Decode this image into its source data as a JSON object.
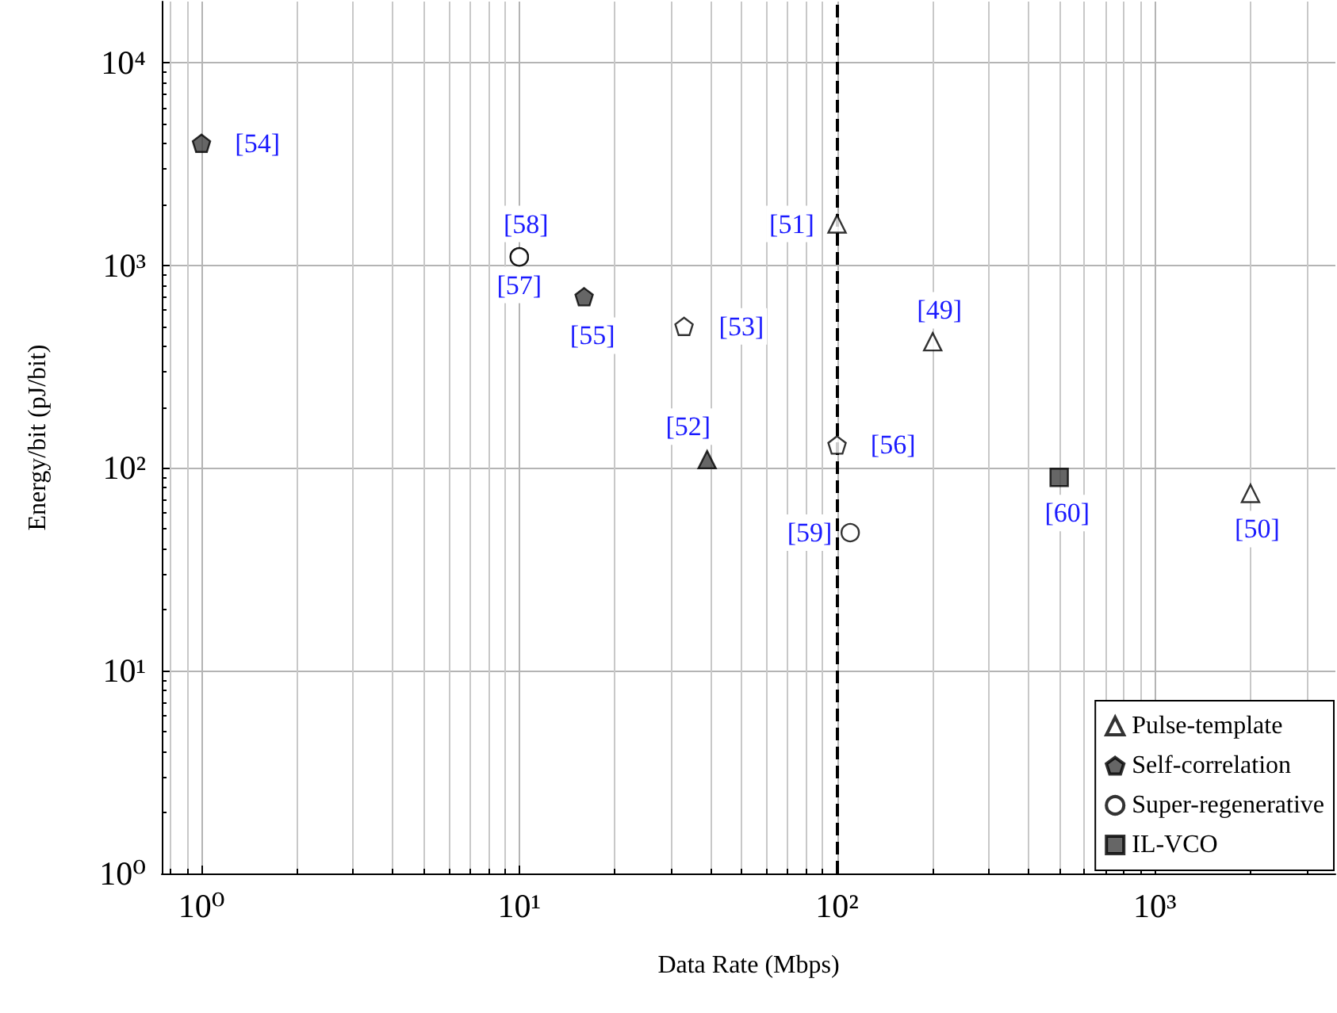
{
  "chart_data": {
    "type": "scatter",
    "xlabel": "Data Rate (Mbps)",
    "ylabel": "Energy/bit (pJ/bit)",
    "log": "xy",
    "grid": true,
    "legend": "bottom right",
    "xlim": [
      0.75,
      3700
    ],
    "ylim": [
      1,
      20000
    ],
    "xticks": [
      {
        "value": 1,
        "label": "10⁰"
      },
      {
        "value": 10,
        "label": "10¹"
      },
      {
        "value": 100,
        "label": "10²"
      },
      {
        "value": 1000,
        "label": "10³"
      }
    ],
    "yticks": [
      {
        "value": 1,
        "label": "10⁰"
      },
      {
        "value": 10,
        "label": "10¹"
      },
      {
        "value": 100,
        "label": "10²"
      },
      {
        "value": 1000,
        "label": "10³"
      },
      {
        "value": 10000,
        "label": "10⁴"
      }
    ],
    "series": [
      {
        "name": "Pulse-template",
        "marker": "triangle",
        "color": "#ffffff",
        "x": [
          100,
          200,
          39,
          2000
        ],
        "values": [
          1600,
          420,
          110,
          75
        ],
        "colors": [
          "#ffffff",
          "#ffffff",
          "#404040",
          "#ffffff"
        ]
      },
      {
        "name": "Self-correlation",
        "color": "#404040",
        "x": [
          1,
          16,
          33,
          100
        ],
        "values": [
          4000,
          700,
          500,
          130
        ],
        "colors": [
          "#404040",
          "#404040",
          "#ffffff",
          "#ffffff"
        ]
      },
      {
        "name": "Super-regenerative",
        "marker": "circle",
        "color": "#ffffff",
        "x": [
          10,
          10,
          110
        ],
        "values": [
          1100,
          1100,
          48
        ],
        "colors": [
          "#ffffff",
          "#ffffff",
          "#ffffff"
        ]
      },
      {
        "name": "IL-VCO",
        "marker": "square",
        "color": "#404040",
        "x": [
          500
        ],
        "values": [
          90
        ],
        "colors": [
          "#404040"
        ]
      }
    ],
    "ref_lines": [
      {
        "axis": "x",
        "value": 100,
        "color": "#000000",
        "line_style": "dashed"
      }
    ],
    "annotations": [
      {
        "text": "[54]",
        "x": 1.5,
        "y": 4000
      },
      {
        "text": "[58]",
        "x": 10.5,
        "y": 1600
      },
      {
        "text": "[57]",
        "x": 10,
        "y": 800
      },
      {
        "text": "[55]",
        "x": 17,
        "y": 450
      },
      {
        "text": "[53]",
        "x": 50,
        "y": 500
      },
      {
        "text": "[52]",
        "x": 34,
        "y": 160
      },
      {
        "text": "[51]",
        "x": 72,
        "y": 1600
      },
      {
        "text": "[49]",
        "x": 210,
        "y": 600
      },
      {
        "text": "[56]",
        "x": 150,
        "y": 130
      },
      {
        "text": "[59]",
        "x": 82,
        "y": 48
      },
      {
        "text": "[60]",
        "x": 530,
        "y": 60
      },
      {
        "text": "[50]",
        "x": 2100,
        "y": 50
      }
    ]
  }
}
